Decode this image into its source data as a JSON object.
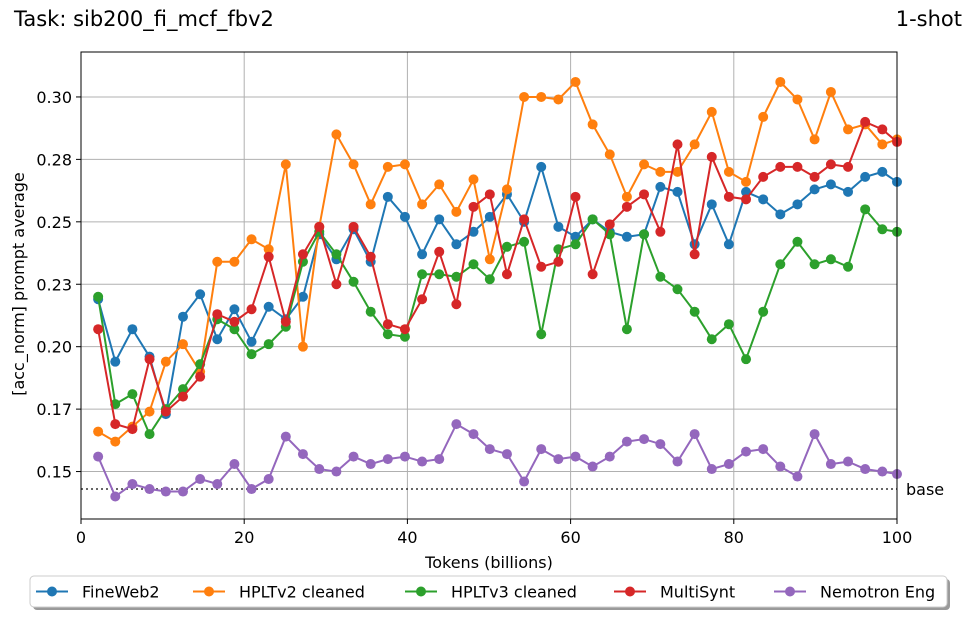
{
  "chart_data": {
    "type": "line",
    "title": "Task: sib200_fi_mcf_fbv2",
    "title_right": "1-shot",
    "xlabel": "Tokens (billions)",
    "ylabel": "[acc_norm] prompt average",
    "xlim": [
      0,
      100
    ],
    "ylim": [
      0.131,
      0.318
    ],
    "xticks": [
      0,
      20,
      40,
      60,
      80,
      100
    ],
    "xtick_labels": [
      "0",
      "20",
      "40",
      "60",
      "80",
      "100"
    ],
    "yticks": [
      0.15,
      0.175,
      0.2,
      0.225,
      0.25,
      0.275,
      0.3
    ],
    "ytick_labels": [
      "0.15",
      "0.17",
      "0.20",
      "0.23",
      "0.25",
      "0.28",
      "0.30"
    ],
    "grid": true,
    "legend_position": "bottom",
    "baseline": {
      "label": "base",
      "value": 0.143
    },
    "x": [
      2.1,
      4.2,
      6.3,
      8.4,
      10.4,
      12.5,
      14.6,
      16.7,
      18.8,
      20.9,
      23.0,
      25.1,
      27.2,
      29.2,
      31.3,
      33.4,
      35.5,
      37.6,
      39.7,
      41.8,
      43.9,
      46.0,
      48.1,
      50.1,
      52.2,
      54.3,
      56.4,
      58.5,
      60.6,
      62.7,
      64.8,
      66.9,
      69.0,
      71.0,
      73.1,
      75.2,
      77.3,
      79.4,
      81.5,
      83.6,
      85.7,
      87.8,
      89.9,
      91.9,
      94.0,
      96.1,
      98.2,
      100.0
    ],
    "series": [
      {
        "name": "FineWeb2",
        "color": "#1f77b4",
        "values": [
          0.219,
          0.194,
          0.207,
          0.196,
          0.173,
          0.212,
          0.221,
          0.203,
          0.215,
          0.202,
          0.216,
          0.211,
          0.22,
          0.245,
          0.235,
          0.247,
          0.234,
          0.26,
          0.252,
          0.237,
          0.251,
          0.241,
          0.246,
          0.252,
          0.261,
          0.25,
          0.272,
          0.248,
          0.244,
          0.251,
          0.246,
          0.244,
          0.245,
          0.264,
          0.262,
          0.241,
          0.257,
          0.241,
          0.262,
          0.259,
          0.253,
          0.257,
          0.263,
          0.265,
          0.262,
          0.268,
          0.27,
          0.266
        ]
      },
      {
        "name": "HPLTv2 cleaned",
        "color": "#ff7f0e",
        "values": [
          0.166,
          0.162,
          0.168,
          0.174,
          0.194,
          0.201,
          0.19,
          0.234,
          0.234,
          0.243,
          0.239,
          0.273,
          0.2,
          0.248,
          0.285,
          0.273,
          0.257,
          0.272,
          0.273,
          0.257,
          0.265,
          0.254,
          0.267,
          0.235,
          0.263,
          0.3,
          0.3,
          0.299,
          0.306,
          0.289,
          0.277,
          0.26,
          0.273,
          0.27,
          0.27,
          0.281,
          0.294,
          0.27,
          0.266,
          0.292,
          0.306,
          0.299,
          0.283,
          0.302,
          0.287,
          0.289,
          0.281,
          0.283
        ]
      },
      {
        "name": "HPLTv3 cleaned",
        "color": "#2ca02c",
        "values": [
          0.22,
          0.177,
          0.181,
          0.165,
          0.175,
          0.183,
          0.193,
          0.211,
          0.207,
          0.197,
          0.201,
          0.208,
          0.234,
          0.246,
          0.237,
          0.226,
          0.214,
          0.205,
          0.204,
          0.229,
          0.229,
          0.228,
          0.233,
          0.227,
          0.24,
          0.242,
          0.205,
          0.239,
          0.241,
          0.251,
          0.245,
          0.207,
          0.245,
          0.228,
          0.223,
          0.214,
          0.203,
          0.209,
          0.195,
          0.214,
          0.233,
          0.242,
          0.233,
          0.235,
          0.232,
          0.255,
          0.247,
          0.246
        ]
      },
      {
        "name": "MultiSynt",
        "color": "#d62728",
        "values": [
          0.207,
          0.169,
          0.167,
          0.195,
          0.174,
          0.18,
          0.188,
          0.213,
          0.21,
          0.215,
          0.236,
          0.21,
          0.237,
          0.248,
          0.225,
          0.248,
          0.236,
          0.209,
          0.207,
          0.219,
          0.238,
          0.217,
          0.256,
          0.261,
          0.229,
          0.251,
          0.232,
          0.234,
          0.26,
          0.229,
          0.249,
          0.256,
          0.261,
          0.246,
          0.281,
          0.237,
          0.276,
          0.26,
          0.259,
          0.268,
          0.272,
          0.272,
          0.268,
          0.273,
          0.272,
          0.29,
          0.287,
          0.282
        ]
      },
      {
        "name": "Nemotron Eng",
        "color": "#9467bd",
        "values": [
          0.156,
          0.14,
          0.145,
          0.143,
          0.142,
          0.142,
          0.147,
          0.145,
          0.153,
          0.143,
          0.147,
          0.164,
          0.157,
          0.151,
          0.15,
          0.156,
          0.153,
          0.155,
          0.156,
          0.154,
          0.155,
          0.169,
          0.165,
          0.159,
          0.157,
          0.146,
          0.159,
          0.155,
          0.156,
          0.152,
          0.156,
          0.162,
          0.163,
          0.161,
          0.154,
          0.165,
          0.151,
          0.153,
          0.158,
          0.159,
          0.152,
          0.148,
          0.165,
          0.153,
          0.154,
          0.151,
          0.15,
          0.149
        ]
      }
    ]
  }
}
